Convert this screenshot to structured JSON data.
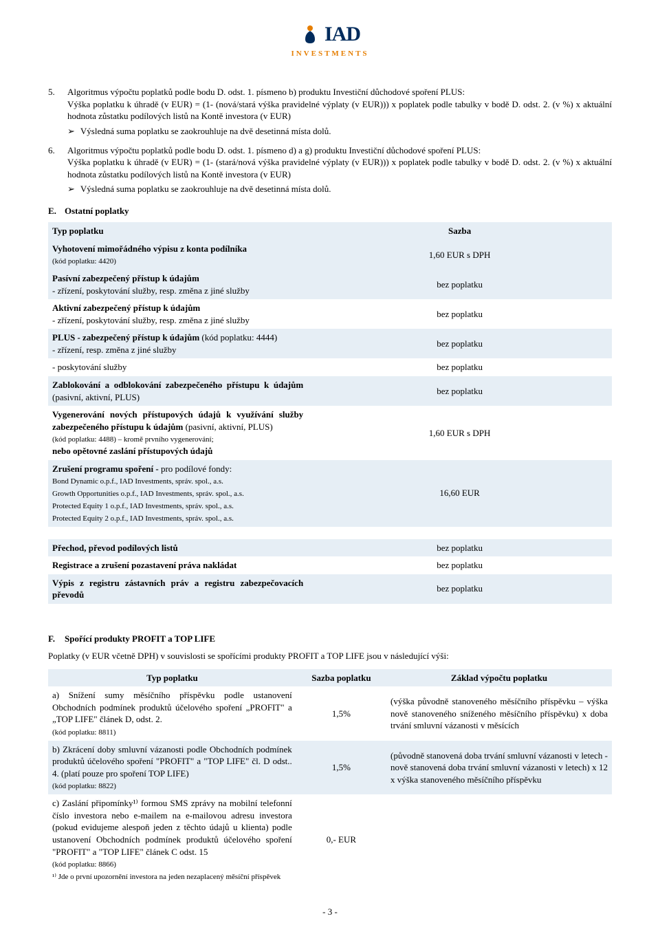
{
  "logo": {
    "main": "IAD",
    "sub": "INVESTMENTS"
  },
  "item5": {
    "num": "5.",
    "line1": "Algoritmus výpočtu poplatků podle bodu D. odst. 1. písmeno b) produktu Investiční důchodové spoření PLUS:",
    "line2": "Výška poplatku k úhradě (v EUR) = (1- (nová/stará výška pravidelné výplaty (v EUR))) x poplatek  podle tabulky v bodě D. odst. 2. (v %) x aktuální hodnota zůstatku podílových listů na Kontě investora (v EUR)",
    "bullet": "Výsledná suma poplatku se zaokrouhluje na dvě desetinná místa dolů."
  },
  "item6": {
    "num": "6.",
    "line1": "Algoritmus výpočtu poplatků podle bodu D. odst. 1. písmeno d) a g) produktu Investiční důchodové spoření PLUS:",
    "line2": "Výška poplatku k úhradě (v EUR) = (1- (stará/nová výška pravidelné výplaty (v EUR))) x poplatek  podle tabulky v bodě D. odst. 2. (v %) x aktuální hodnota zůstatku podílových listů na Kontě investora (v EUR)",
    "bullet": "Výsledná suma poplatku se zaokrouhluje na dvě desetinná místa dolů."
  },
  "sectE": {
    "letter": "E.",
    "title": "Ostatní poplatky",
    "header": {
      "type": "Typ poplatku",
      "rate": "Sazba"
    },
    "rows": [
      {
        "t": "Vyhotovení mimořádného výpisu z konta podílníka",
        "sub": "(kód poplatku: 4420)",
        "r": "1,60 EUR s DPH",
        "band": true,
        "bold": true
      },
      {
        "t": "Pasívní zabezpečený přístup k údajům",
        "sub2": "- zřízení, poskytování služby, resp. změna z jiné služby",
        "r": "bez poplatku",
        "band": true,
        "bold": true
      },
      {
        "t": "Aktivní zabezpečený přístup k údajům",
        "sub2": "- zřízení, poskytování služby, resp. změna z jiné služby",
        "r": "bez poplatku",
        "band": false,
        "bold": true
      },
      {
        "t": "PLUS - zabezpečený přístup k údajům",
        "tsuf": " (kód poplatku: 4444)",
        "sub2": "- zřízení, resp. změna z jiné služby",
        "r": "bez poplatku",
        "band": true,
        "bold": true
      },
      {
        "t": "- poskytování služby",
        "r": "bez poplatku",
        "band": false
      },
      {
        "t": "Zablokování a odblokování zabezpečeného přístupu k údajům",
        "tsuf": " (pasivní, aktivní, PLUS)",
        "r": "bez poplatku",
        "band": true,
        "bold": true
      },
      {
        "t": "Vygenerování nových přístupových údajů k využívání služby zabezpečeného přístupu k údajům",
        "tsuf": " (pasivní, aktivní, PLUS)",
        "sub": "(kód poplatku: 4488) – kromě prvního vygenerování;",
        "sub3": "nebo opětovné zaslání přístupových údajů",
        "r": "1,60 EUR s DPH",
        "band": false,
        "bold": true
      },
      {
        "t": "Zrušení programu spoření -",
        "tsuf": " pro podílové fondy:",
        "lines": [
          "Bond Dynamic o.p.f., IAD Investments, správ. spol., a.s.",
          "Growth Opportunities o.p.f., IAD Investments, správ. spol., a.s.",
          "Protected Equity 1 o.p.f., IAD Investments, správ. spol., a.s.",
          "Protected Equity 2 o.p.f., IAD Investments, správ. spol., a.s."
        ],
        "r": "16,60 EUR",
        "band": true,
        "bold": true
      },
      {
        "t": "Přechod, převod podílových listů",
        "r": "bez poplatku",
        "band": true,
        "bold": true,
        "gap": true
      },
      {
        "t": "Registrace a zrušení pozastavení práva nakládat",
        "r": "bez poplatku",
        "band": false,
        "bold": true
      },
      {
        "t": "Výpis z registru zástavních práv a registru zabezpečovacích převodů",
        "r": "bez poplatku",
        "band": true,
        "bold": true
      }
    ]
  },
  "sectF": {
    "letter": "F.",
    "title": "Spořící produkty PROFIT a TOP LIFE",
    "intro": "Poplatky (v EUR včetně DPH) v souvislosti se spořícími produkty PROFIT a TOP LIFE jsou v následující výši:",
    "header": {
      "c1": "Typ poplatku",
      "c2": "Sazba poplatku",
      "c3": "Základ výpočtu poplatku"
    },
    "rows": [
      {
        "c1a": "a) Snížení sumy měsíčního příspěvku podle ustanovení Obchodních podmínek produktů účelového spoření „PROFIT\" a „TOP LIFE\" článek D, odst. 2. ",
        "c1b": "(kód poplatku: 8811)",
        "c2": "1,5%",
        "c3": "(výška původně stanoveného měsíčního příspěvku – výška nově stanoveného sníženého měsíčního příspěvku) x doba trvání smluvní vázanosti v měsících",
        "band": false
      },
      {
        "c1a": "b) Zkrácení doby smluvní vázanosti podle Obchodních podmínek produktů účelového spoření \"PROFIT\" a \"TOP LIFE\" čl. D odst.. 4. (platí pouze pro spoření TOP LIFE)",
        "c1b": "(kód poplatku: 8822)",
        "c2": "1,5%",
        "c3": "(původně stanovená doba trvání smluvní vázanosti v letech - nově stanovená doba trvání smluvní vázanosti v letech) x 12 x výška stanoveného měsíčního příspěvku",
        "band": true
      },
      {
        "c1a": "c) Zaslání připomínky¹⁾ formou SMS zprávy na mobilní telefonní číslo investora nebo e-mailem na e-mailovou adresu investora (pokud evidujeme alespoň jeden z těchto údajů u klienta) podle ustanovení Obchodních podmínek produktů účelového spoření \"PROFIT\" a \"TOP LIFE\" článek C odst. 15",
        "c1b": "(kód poplatku: 8866)",
        "c1c": "¹⁾ Jde o první upozornění investora na jeden nezaplacený měsíční příspěvek",
        "c2": "0,- EUR",
        "c3": "",
        "band": false
      }
    ]
  },
  "pagenum": "- 3 -"
}
